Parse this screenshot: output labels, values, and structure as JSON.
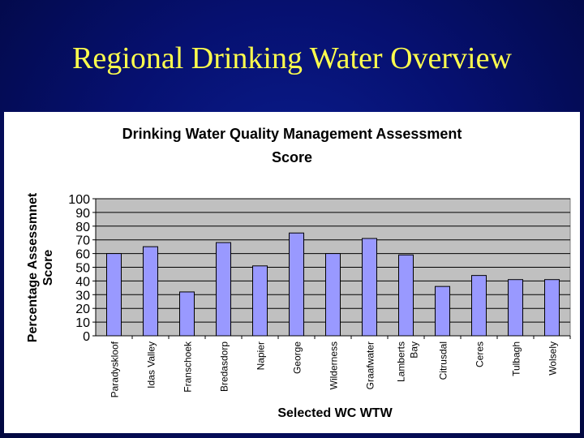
{
  "slide": {
    "title": "Regional Drinking Water Overview"
  },
  "chart_data": {
    "type": "bar",
    "title_lines": [
      "Drinking Water Quality Management Assessment",
      "Score"
    ],
    "xlabel": "Selected WC WTW",
    "ylabel_lines": [
      "Percentage Assessmnet",
      "Score"
    ],
    "ylim": [
      0,
      100
    ],
    "yticks": [
      0,
      10,
      20,
      30,
      40,
      50,
      60,
      70,
      80,
      90,
      100
    ],
    "grid": true,
    "categories": [
      [
        "Paradyskloof"
      ],
      [
        "Idas Valley"
      ],
      [
        "Franschoek"
      ],
      [
        "Bredasdorp"
      ],
      [
        "Napier"
      ],
      [
        "George"
      ],
      [
        "Wilderness"
      ],
      [
        "Graafwater"
      ],
      [
        "Lamberts",
        "Bay"
      ],
      [
        "Citrusdal"
      ],
      [
        "Ceres"
      ],
      [
        "Tulbagh"
      ],
      [
        "Wolsely"
      ]
    ],
    "values": [
      60,
      65,
      32,
      68,
      51,
      75,
      60,
      71,
      59,
      36,
      44,
      41,
      41
    ],
    "colors": {
      "bar": "#9999ff",
      "plot_bg": "#c0c0c0",
      "grid": "#000000"
    }
  }
}
